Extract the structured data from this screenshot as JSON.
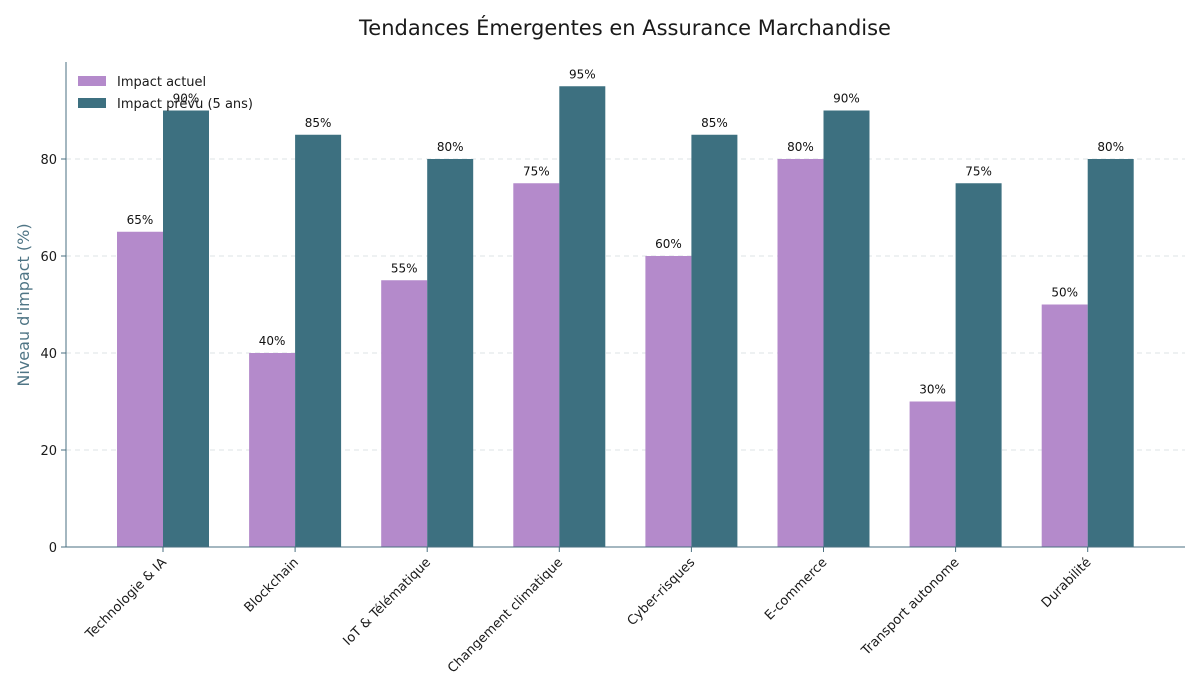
{
  "chart_data": {
    "type": "bar",
    "title": "Tendances Émergentes en Assurance Marchandise",
    "xlabel": "",
    "ylabel": "Niveau d'impact (%)",
    "ylim": [
      0,
      100
    ],
    "yticks": [
      0,
      20,
      40,
      60,
      80
    ],
    "grid": "horizontal-dashed",
    "legend_position": "top-left",
    "categories": [
      "Technologie & IA",
      "Blockchain",
      "IoT & Télématique",
      "Changement climatique",
      "Cyber-risques",
      "E-commerce",
      "Transport autonome",
      "Durabilité"
    ],
    "series": [
      {
        "name": "Impact actuel",
        "color": "#b48acb",
        "values": [
          65,
          40,
          55,
          75,
          60,
          80,
          30,
          50
        ]
      },
      {
        "name": "Impact prévu (5 ans)",
        "color": "#3d7080",
        "values": [
          90,
          85,
          80,
          95,
          85,
          90,
          75,
          80
        ]
      }
    ],
    "value_suffix": "%",
    "colors": {
      "axis": "#4a6f80",
      "ylabel": "#4f7585",
      "grid": "#dde3e6"
    }
  }
}
